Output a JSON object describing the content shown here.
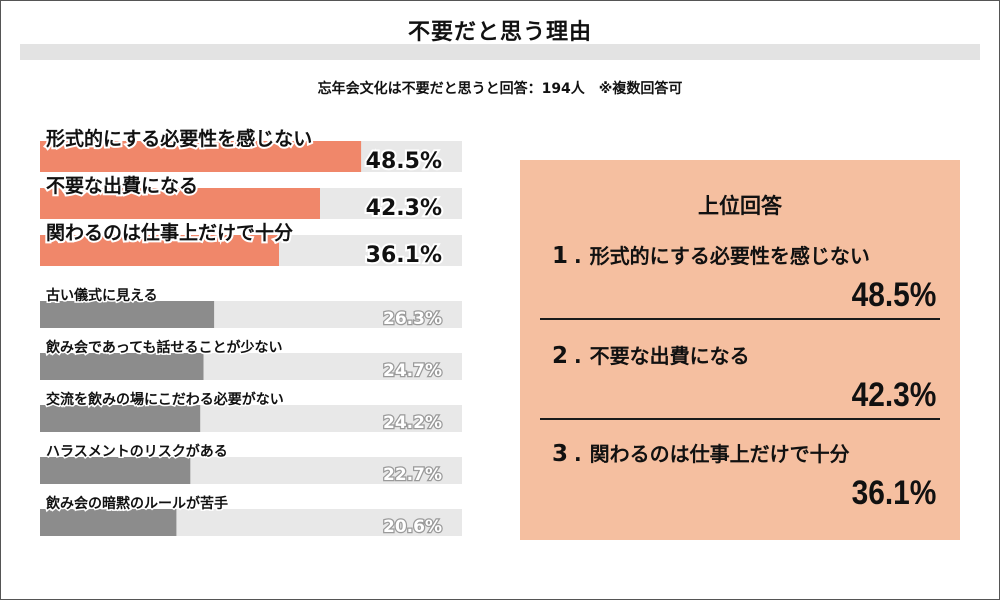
{
  "title": "不要だと思う理由",
  "subtitle": "忘年会文化は不要だと思うと回答：194人　※複数回答可",
  "colors": {
    "highlight_bar": "#f0876a",
    "normal_bar": "#8c8c8c",
    "track": "#e8e8e8",
    "highlight_value": "#111111",
    "normal_value": "#ffffff",
    "panel_bg": "#f5bfa0"
  },
  "chart_data": {
    "type": "bar",
    "orientation": "horizontal",
    "unit": "%",
    "xlim": [
      0,
      100
    ],
    "categories": [
      "形式的にする必要性を感じない",
      "不要な出費になる",
      "関わるのは仕事上だけで十分",
      "古い儀式に見える",
      "飲み会であっても話せることが少ない",
      "交流を飲みの場にこだわる必要がない",
      "ハラスメントのリスクがある",
      "飲み会の暗黙のルールが苦手"
    ],
    "values": [
      48.5,
      42.3,
      36.1,
      26.3,
      24.7,
      24.2,
      22.7,
      20.6
    ],
    "value_labels": [
      "48.5%",
      "42.3%",
      "36.1%",
      "26.3%",
      "24.7%",
      "24.2%",
      "22.7%",
      "20.6%"
    ],
    "highlighted_count": 3
  },
  "top_answers": {
    "heading": "上位回答",
    "items": [
      {
        "rank": "1",
        "dot": ".",
        "label": "形式的にする必要性を感じない",
        "value": "48.5%"
      },
      {
        "rank": "2",
        "dot": ".",
        "label": "不要な出費になる",
        "value": "42.3%"
      },
      {
        "rank": "3",
        "dot": ".",
        "label": "関わるのは仕事上だけで十分",
        "value": "36.1%"
      }
    ]
  }
}
